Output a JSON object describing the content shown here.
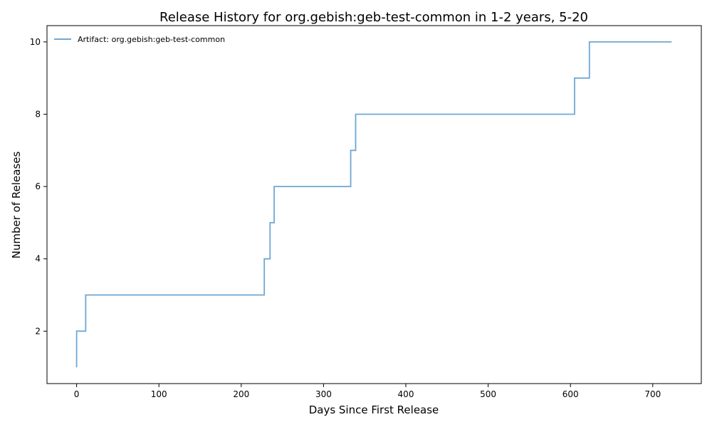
{
  "chart_data": {
    "type": "line",
    "step": "post",
    "title": "Release History for org.gebish:geb-test-common in 1-2 years, 5-20",
    "xlabel": "Days Since First Release",
    "ylabel": "Number of Releases",
    "xlim": [
      -36,
      759
    ],
    "ylim": [
      0.55,
      10.45
    ],
    "xticks": [
      0,
      100,
      200,
      300,
      400,
      500,
      600,
      700
    ],
    "yticks": [
      2,
      4,
      6,
      8,
      10
    ],
    "grid": false,
    "legend_position": "top-left",
    "series": [
      {
        "name": "Artifact: org.gebish:geb-test-common",
        "color": "#6fa7d4",
        "x": [
          0,
          0,
          11,
          228,
          235,
          240,
          333,
          339,
          605,
          623,
          723
        ],
        "y": [
          1,
          2,
          3,
          4,
          5,
          6,
          7,
          8,
          9,
          10,
          10
        ]
      }
    ]
  }
}
